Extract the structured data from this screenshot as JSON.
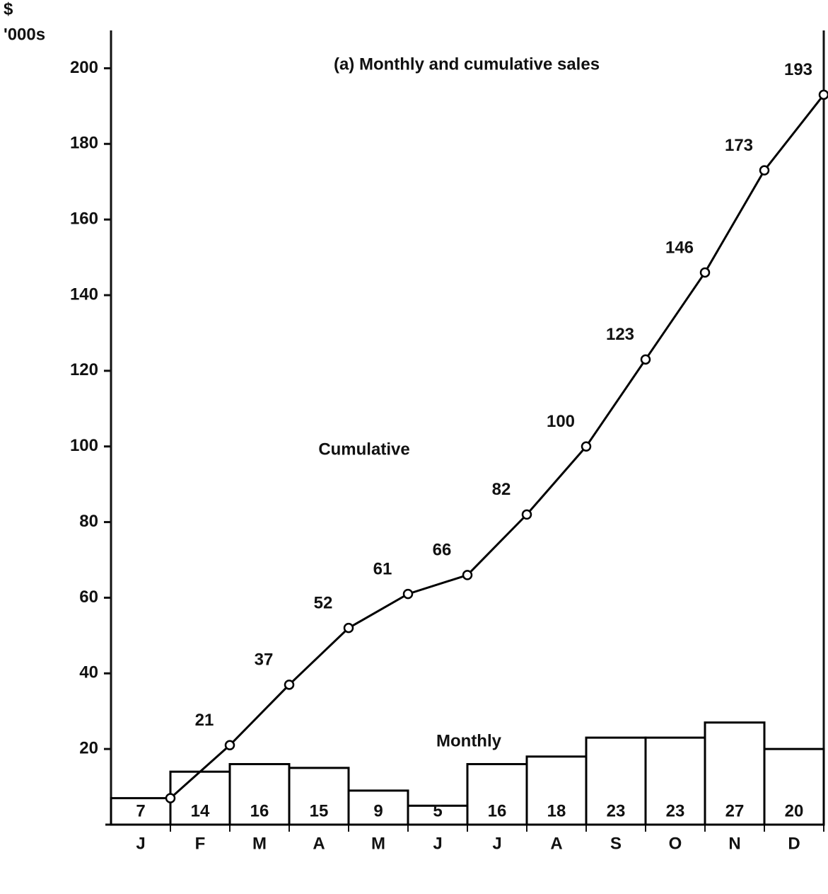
{
  "chart_data": {
    "type": "combo",
    "title": "(a) Monthly and cumulative sales",
    "y_label": [
      "$",
      "'000s"
    ],
    "categories": [
      "J",
      "F",
      "M",
      "A",
      "M",
      "J",
      "J",
      "A",
      "S",
      "O",
      "N",
      "D"
    ],
    "series": [
      {
        "name": "Monthly",
        "type": "bar",
        "color": "#000000",
        "values": [
          7,
          14,
          16,
          15,
          9,
          5,
          16,
          18,
          23,
          23,
          27,
          20
        ]
      },
      {
        "name": "Cumulative",
        "type": "line",
        "color": "#000000",
        "values": [
          7,
          21,
          37,
          52,
          61,
          66,
          82,
          100,
          123,
          146,
          173,
          193
        ]
      }
    ],
    "ylim": [
      0,
      210
    ],
    "yticks": [
      20,
      40,
      60,
      80,
      100,
      120,
      140,
      160,
      180,
      200
    ],
    "grid": false
  }
}
